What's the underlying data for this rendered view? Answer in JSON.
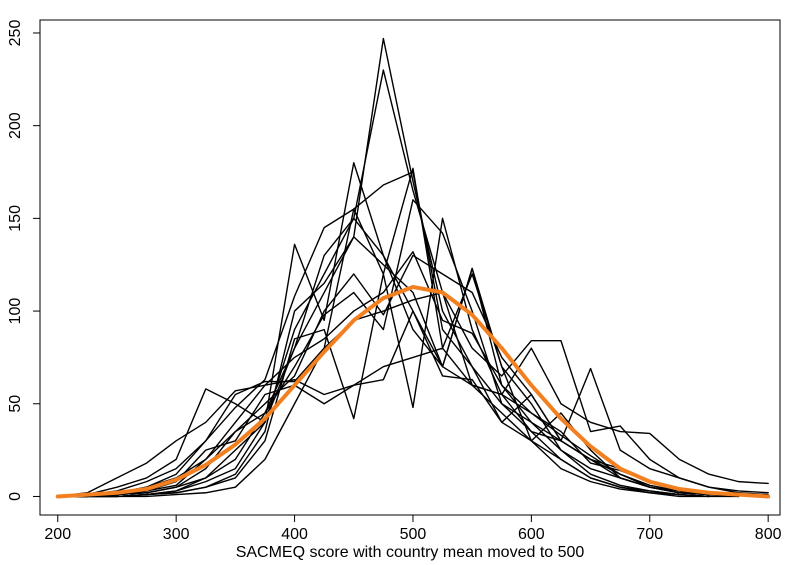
{
  "chart_data": {
    "type": "line",
    "x_label": "SACMEQ score with country mean moved to 500",
    "x": [
      200,
      225,
      250,
      275,
      300,
      325,
      350,
      375,
      400,
      425,
      450,
      475,
      500,
      525,
      550,
      575,
      600,
      625,
      650,
      675,
      700,
      725,
      750,
      775,
      800
    ],
    "xlim": [
      185,
      810
    ],
    "xticks": [
      200,
      300,
      400,
      500,
      600,
      700,
      800
    ],
    "ylim": [
      -10,
      257
    ],
    "yticks": [
      0,
      50,
      100,
      150,
      200,
      250
    ],
    "series": [
      {
        "color": "#000000",
        "values": [
          0,
          0,
          1,
          2,
          5,
          10,
          20,
          45,
          80,
          110,
          140,
          247,
          170,
          100,
          70,
          50,
          35,
          20,
          10,
          5,
          3,
          1,
          0,
          0,
          null
        ]
      },
      {
        "color": "#000000",
        "values": [
          0,
          0,
          0,
          1,
          3,
          8,
          15,
          40,
          90,
          120,
          150,
          230,
          165,
          110,
          60,
          45,
          30,
          15,
          8,
          4,
          2,
          1,
          0,
          null,
          null
        ]
      },
      {
        "color": "#000000",
        "values": [
          0,
          1,
          5,
          10,
          20,
          58,
          50,
          40,
          136,
          95,
          180,
          130,
          100,
          70,
          123,
          60,
          40,
          25,
          15,
          10,
          5,
          3,
          2,
          1,
          0
        ]
      },
      {
        "color": "#000000",
        "values": [
          0,
          0,
          2,
          5,
          12,
          30,
          48,
          63,
          108,
          145,
          155,
          120,
          48,
          150,
          90,
          55,
          35,
          30,
          20,
          12,
          6,
          3,
          1,
          null,
          null
        ]
      },
      {
        "color": "#000000",
        "values": [
          0,
          0,
          1,
          3,
          8,
          25,
          30,
          55,
          60,
          50,
          60,
          70,
          75,
          80,
          60,
          55,
          80,
          50,
          40,
          35,
          34,
          20,
          12,
          8,
          7
        ]
      },
      {
        "color": "#000000",
        "values": [
          0,
          0,
          0,
          1,
          2,
          5,
          10,
          30,
          85,
          90,
          42,
          120,
          177,
          80,
          120,
          70,
          30,
          45,
          25,
          10,
          5,
          2,
          1,
          0,
          null
        ]
      },
      {
        "color": "#000000",
        "values": [
          0,
          0,
          0,
          0,
          1,
          2,
          5,
          20,
          50,
          80,
          155,
          168,
          175,
          90,
          70,
          40,
          30,
          20,
          10,
          5,
          2,
          0,
          0,
          null,
          null
        ]
      },
      {
        "color": "#000000",
        "values": [
          0,
          1,
          3,
          8,
          15,
          30,
          55,
          62,
          62,
          80,
          95,
          100,
          106,
          110,
          80,
          65,
          84,
          84,
          35,
          38,
          20,
          10,
          5,
          3,
          2
        ]
      },
      {
        "color": "#000000",
        "values": [
          0,
          0,
          2,
          5,
          10,
          20,
          35,
          45,
          70,
          98,
          110,
          90,
          160,
          142,
          100,
          50,
          40,
          30,
          20,
          15,
          8,
          3,
          1,
          null,
          null
        ]
      },
      {
        "color": "#000000",
        "values": [
          0,
          2,
          10,
          18,
          30,
          40,
          57,
          60,
          63,
          55,
          60,
          63,
          100,
          65,
          63,
          40,
          55,
          30,
          69,
          25,
          15,
          10,
          5,
          2,
          1
        ]
      },
      {
        "color": "#000000",
        "values": [
          0,
          0,
          1,
          2,
          5,
          15,
          35,
          50,
          65,
          100,
          120,
          98,
          130,
          120,
          110,
          75,
          55,
          30,
          20,
          10,
          5,
          2,
          1,
          0,
          null
        ]
      },
      {
        "color": "#000000",
        "values": [
          0,
          0,
          0,
          1,
          3,
          10,
          25,
          40,
          80,
          130,
          150,
          130,
          90,
          70,
          123,
          70,
          50,
          25,
          12,
          6,
          3,
          1,
          0,
          null,
          null
        ]
      },
      {
        "color": "#000000",
        "values": [
          0,
          0,
          0,
          1,
          2,
          5,
          12,
          35,
          100,
          115,
          140,
          125,
          110,
          70,
          60,
          55,
          45,
          33,
          22,
          12,
          5,
          2,
          1,
          null,
          null
        ]
      },
      {
        "color": "#000000",
        "values": [
          0,
          0,
          1,
          3,
          6,
          20,
          40,
          60,
          75,
          85,
          100,
          110,
          132,
          95,
          88,
          60,
          45,
          35,
          18,
          14,
          8,
          4,
          2,
          1,
          null
        ]
      },
      {
        "color": "#f28020",
        "width": 4,
        "values": [
          0,
          1,
          2,
          4,
          9,
          17,
          28,
          42,
          60,
          78,
          95,
          107,
          113,
          110,
          98,
          80,
          60,
          42,
          27,
          15,
          8,
          4,
          2,
          1,
          0
        ]
      }
    ]
  }
}
